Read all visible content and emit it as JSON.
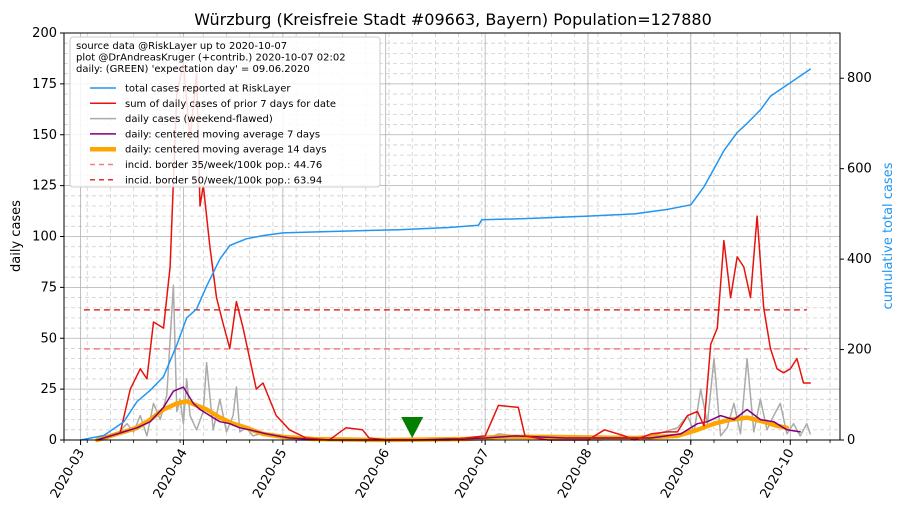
{
  "chart_data": {
    "type": "line",
    "title": "Würzburg (Kreisfreie Stadt #09663, Bayern) Population=127880",
    "ylabel": "daily cases",
    "y2label": "cumulative total cases",
    "ylim": [
      0,
      200
    ],
    "y2lim": [
      0,
      900
    ],
    "xlim": [
      "2020-02-25",
      "2020-10-16"
    ],
    "yticks": [
      0,
      25,
      50,
      75,
      100,
      125,
      150,
      175,
      200
    ],
    "y2ticks": [
      0,
      200,
      400,
      600,
      800
    ],
    "xticks": [
      "2020-03",
      "2020-04",
      "2020-05",
      "2020-06",
      "2020-07",
      "2020-08",
      "2020-09",
      "2020-10"
    ],
    "grid": true,
    "legend_position": "top-left",
    "info_lines": [
      "source data @RiskLayer up to 2020-10-07",
      "plot @DrAndreasKruger (+contrib.) 2020-10-07 02:02",
      "daily: (GREEN) 'expectation day' = 09.06.2020"
    ],
    "legend": [
      {
        "label": "total cases reported at RiskLayer",
        "color": "#2196f3",
        "style": "solid",
        "width": 1.5
      },
      {
        "label": "sum of daily cases of prior 7 days for date",
        "color": "#e8120c",
        "style": "solid",
        "width": 1.5
      },
      {
        "label": "daily cases (weekend-flawed)",
        "color": "#aaaaaa",
        "style": "solid",
        "width": 1.5
      },
      {
        "label": "daily: centered moving average 7 days",
        "color": "#800080",
        "style": "solid",
        "width": 1.5
      },
      {
        "label": "daily: centered moving average 14 days",
        "color": "#ffa500",
        "style": "solid",
        "width": 4.5
      },
      {
        "label": "incid. border 35/week/100k pop.: 44.76",
        "color": "#f08080",
        "style": "dashed",
        "width": 1.5
      },
      {
        "label": "incid. border 50/week/100k pop.: 63.94",
        "color": "#e03030",
        "style": "dashed",
        "width": 1.5
      }
    ],
    "thresholds": [
      44.76,
      63.94
    ],
    "threshold_range": [
      "2020-03-02",
      "2020-10-06"
    ],
    "expectation_day": "2020-06-09",
    "series": [
      {
        "name": "total cases reported at RiskLayer",
        "axis": "right",
        "x": [
          "2020-03-01",
          "2020-03-08",
          "2020-03-14",
          "2020-03-18",
          "2020-03-22",
          "2020-03-26",
          "2020-03-30",
          "2020-04-02",
          "2020-04-05",
          "2020-04-08",
          "2020-04-12",
          "2020-04-15",
          "2020-04-20",
          "2020-04-25",
          "2020-05-01",
          "2020-05-10",
          "2020-05-25",
          "2020-06-05",
          "2020-06-20",
          "2020-06-29",
          "2020-06-30",
          "2020-07-15",
          "2020-08-01",
          "2020-08-15",
          "2020-08-25",
          "2020-09-01",
          "2020-09-05",
          "2020-09-08",
          "2020-09-11",
          "2020-09-15",
          "2020-09-18",
          "2020-09-22",
          "2020-09-25",
          "2020-09-28",
          "2020-10-01",
          "2020-10-04",
          "2020-10-07"
        ],
        "y": [
          0,
          10,
          40,
          85,
          110,
          140,
          210,
          270,
          290,
          340,
          400,
          430,
          445,
          452,
          458,
          460,
          463,
          465,
          470,
          475,
          487,
          490,
          495,
          500,
          510,
          520,
          560,
          600,
          640,
          680,
          700,
          730,
          760,
          775,
          790,
          805,
          820
        ]
      },
      {
        "name": "sum of daily cases of prior 7 days for date",
        "axis": "left",
        "x": [
          "2020-03-13",
          "2020-03-16",
          "2020-03-19",
          "2020-03-21",
          "2020-03-23",
          "2020-03-26",
          "2020-03-28",
          "2020-03-30",
          "2020-04-01",
          "2020-04-03",
          "2020-04-05",
          "2020-04-06",
          "2020-04-07",
          "2020-04-09",
          "2020-04-11",
          "2020-04-13",
          "2020-04-15",
          "2020-04-17",
          "2020-04-19",
          "2020-04-21",
          "2020-04-23",
          "2020-04-25",
          "2020-04-29",
          "2020-05-03",
          "2020-05-08",
          "2020-05-15",
          "2020-05-20",
          "2020-05-25",
          "2020-05-27",
          "2020-06-01",
          "2020-06-20",
          "2020-07-01",
          "2020-07-05",
          "2020-07-11",
          "2020-07-13",
          "2020-07-20",
          "2020-08-01",
          "2020-08-06",
          "2020-08-12",
          "2020-08-15",
          "2020-08-20",
          "2020-08-25",
          "2020-08-28",
          "2020-08-31",
          "2020-09-03",
          "2020-09-05",
          "2020-09-07",
          "2020-09-09",
          "2020-09-11",
          "2020-09-13",
          "2020-09-15",
          "2020-09-17",
          "2020-09-19",
          "2020-09-21",
          "2020-09-23",
          "2020-09-25",
          "2020-09-27",
          "2020-09-29",
          "2020-10-01",
          "2020-10-03",
          "2020-10-05",
          "2020-10-07"
        ],
        "y": [
          4,
          25,
          35,
          30,
          58,
          55,
          85,
          170,
          185,
          148,
          180,
          115,
          125,
          95,
          70,
          57,
          45,
          68,
          55,
          40,
          25,
          28,
          12,
          5,
          1,
          0,
          6,
          5,
          1,
          0,
          0,
          2,
          17,
          16,
          2,
          0,
          0,
          5,
          2,
          0,
          3,
          4,
          4,
          12,
          14,
          7,
          47,
          55,
          98,
          70,
          90,
          85,
          70,
          110,
          65,
          45,
          35,
          33,
          35,
          40,
          28,
          28
        ]
      },
      {
        "name": "daily cases (weekend-flawed)",
        "axis": "left",
        "x": [
          "2020-03-08",
          "2020-03-12",
          "2020-03-15",
          "2020-03-17",
          "2020-03-19",
          "2020-03-21",
          "2020-03-23",
          "2020-03-25",
          "2020-03-27",
          "2020-03-29",
          "2020-03-30",
          "2020-03-31",
          "2020-04-01",
          "2020-04-02",
          "2020-04-03",
          "2020-04-05",
          "2020-04-07",
          "2020-04-08",
          "2020-04-10",
          "2020-04-12",
          "2020-04-14",
          "2020-04-16",
          "2020-04-17",
          "2020-04-18",
          "2020-04-20",
          "2020-04-22",
          "2020-04-24",
          "2020-04-28",
          "2020-05-05",
          "2020-05-15",
          "2020-05-30",
          "2020-06-15",
          "2020-06-30",
          "2020-07-02",
          "2020-07-05",
          "2020-07-10",
          "2020-07-20",
          "2020-08-05",
          "2020-08-12",
          "2020-08-20",
          "2020-08-28",
          "2020-08-31",
          "2020-09-02",
          "2020-09-04",
          "2020-09-06",
          "2020-09-08",
          "2020-09-10",
          "2020-09-12",
          "2020-09-14",
          "2020-09-16",
          "2020-09-18",
          "2020-09-20",
          "2020-09-22",
          "2020-09-24",
          "2020-09-26",
          "2020-09-28",
          "2020-09-30",
          "2020-10-02",
          "2020-10-04",
          "2020-10-06",
          "2020-10-07"
        ],
        "y": [
          0,
          3,
          8,
          4,
          12,
          2,
          18,
          10,
          22,
          76,
          14,
          20,
          8,
          30,
          12,
          5,
          14,
          38,
          5,
          20,
          4,
          12,
          26,
          4,
          6,
          2,
          3,
          2,
          0,
          0,
          0,
          0,
          0,
          1,
          3,
          2,
          0,
          0,
          1,
          2,
          6,
          12,
          4,
          25,
          8,
          40,
          2,
          6,
          18,
          3,
          40,
          4,
          20,
          5,
          12,
          18,
          3,
          8,
          2,
          8,
          3
        ]
      },
      {
        "name": "daily: centered moving average 7 days",
        "axis": "left",
        "x": [
          "2020-03-06",
          "2020-03-12",
          "2020-03-18",
          "2020-03-22",
          "2020-03-26",
          "2020-03-29",
          "2020-04-01",
          "2020-04-04",
          "2020-04-06",
          "2020-04-09",
          "2020-04-12",
          "2020-04-15",
          "2020-04-18",
          "2020-04-21",
          "2020-04-26",
          "2020-05-03",
          "2020-05-15",
          "2020-06-10",
          "2020-07-01",
          "2020-07-10",
          "2020-07-25",
          "2020-08-20",
          "2020-08-29",
          "2020-09-03",
          "2020-09-06",
          "2020-09-10",
          "2020-09-14",
          "2020-09-18",
          "2020-09-22",
          "2020-09-26",
          "2020-09-30",
          "2020-10-04"
        ],
        "y": [
          0,
          3,
          6,
          9,
          16,
          24,
          26,
          18,
          15,
          12,
          9,
          8,
          6,
          5,
          3,
          1,
          0,
          0,
          1,
          2,
          1,
          1,
          3,
          8,
          9,
          12,
          10,
          15,
          10,
          9,
          5,
          4
        ]
      },
      {
        "name": "daily: centered moving average 14 days",
        "axis": "left",
        "x": [
          "2020-03-06",
          "2020-03-12",
          "2020-03-18",
          "2020-03-22",
          "2020-03-26",
          "2020-03-30",
          "2020-04-02",
          "2020-04-05",
          "2020-04-08",
          "2020-04-12",
          "2020-04-16",
          "2020-04-20",
          "2020-04-25",
          "2020-05-01",
          "2020-05-10",
          "2020-06-01",
          "2020-06-25",
          "2020-07-05",
          "2020-07-20",
          "2020-08-15",
          "2020-08-28",
          "2020-09-03",
          "2020-09-08",
          "2020-09-13",
          "2020-09-18",
          "2020-09-23",
          "2020-09-27",
          "2020-09-30"
        ],
        "y": [
          0,
          3,
          6,
          10,
          15,
          18,
          19,
          17,
          15,
          11,
          8,
          6,
          3,
          1.5,
          0.5,
          0,
          0.5,
          1.5,
          1.5,
          1,
          2,
          5,
          8,
          10,
          11,
          9,
          7,
          6
        ]
      }
    ]
  }
}
